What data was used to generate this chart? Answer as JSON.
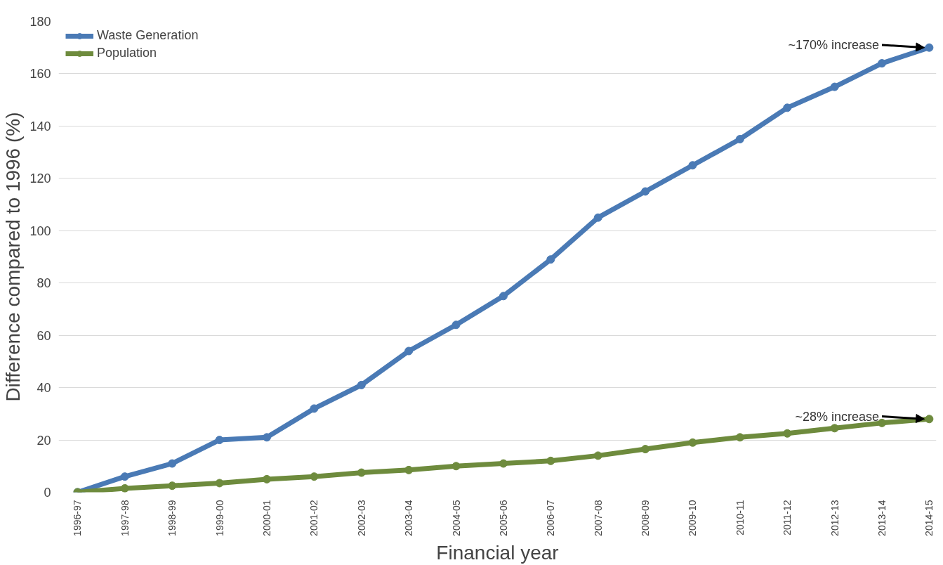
{
  "chart_data": {
    "type": "line",
    "xlabel": "Financial year",
    "ylabel": "Difference compared to 1996 (%)",
    "categories": [
      "1996-97",
      "1997-98",
      "1998-99",
      "1999-00",
      "2000-01",
      "2001-02",
      "2002-03",
      "2003-04",
      "2004-05",
      "2005-06",
      "2006-07",
      "2007-08",
      "2008-09",
      "2009-10",
      "2010-11",
      "2011-12",
      "2012-13",
      "2013-14",
      "2014-15"
    ],
    "series": [
      {
        "name": "Waste Generation",
        "color": "#4a7ab5",
        "values": [
          0,
          6,
          11,
          20,
          21,
          32,
          41,
          54,
          64,
          75,
          89,
          105,
          115,
          125,
          135,
          147,
          155,
          164,
          170
        ]
      },
      {
        "name": "Population",
        "color": "#6e8b3d",
        "values": [
          0,
          1.5,
          2.5,
          3.5,
          5,
          6,
          7.5,
          8.5,
          10,
          11,
          12,
          14,
          16.5,
          19,
          21,
          22.5,
          24.5,
          26.5,
          28
        ]
      }
    ],
    "ylim": [
      0,
      180
    ],
    "yticks": [
      0,
      20,
      40,
      60,
      80,
      100,
      120,
      140,
      160,
      180
    ],
    "grid": "y",
    "legend": "top left",
    "marker": "circle",
    "line_style": "solid",
    "annotations": [
      {
        "text": "~170% increase",
        "x": "2014-15",
        "y": 170
      },
      {
        "text": "~28% increase",
        "x": "2014-15",
        "y": 28
      }
    ]
  }
}
